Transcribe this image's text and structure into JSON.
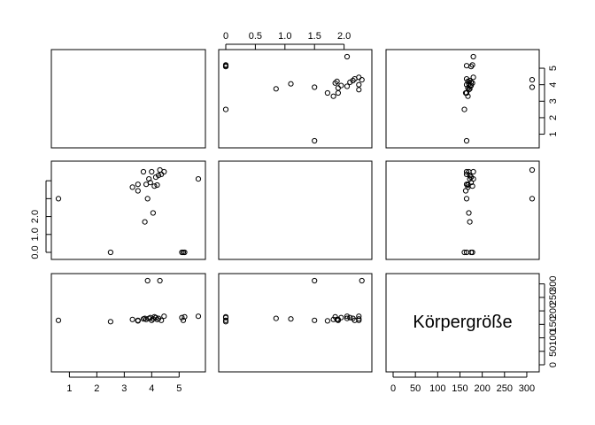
{
  "chart_data": {
    "type": "scatter",
    "variables": [
      {
        "index": 0,
        "name": "",
        "ticks": [
          1,
          2,
          3,
          4,
          5
        ],
        "tick_labels": [
          "1",
          "2",
          "3",
          "4",
          "5"
        ],
        "range": [
          0.6,
          5.7
        ]
      },
      {
        "index": 1,
        "name": "",
        "ticks": [
          0,
          0.5,
          1,
          1.5,
          2
        ],
        "tick_labels": [
          "0.0",
          "0.5",
          "1.0",
          "1.5",
          "2.0"
        ],
        "range": [
          0,
          2.35
        ]
      },
      {
        "index": 2,
        "name": "Körpergröße",
        "ticks": [
          0,
          50,
          100,
          150,
          200,
          250,
          300
        ],
        "tick_labels": [
          "0",
          "50",
          "100",
          "150",
          "200",
          "250",
          "300"
        ],
        "range": [
          0,
          312
        ]
      }
    ],
    "axis_sides": {
      "top": {
        "column": 1,
        "labels": [
          "0",
          "0.5",
          "1.0",
          "1.5",
          "2.0"
        ]
      },
      "bottom_left": {
        "column": 0,
        "labels": [
          "1",
          "2",
          "3",
          "4",
          "5"
        ]
      },
      "bottom_right": {
        "column": 2,
        "labels": [
          "0",
          "50",
          "100",
          "150",
          "200",
          "250",
          "300"
        ]
      },
      "right_top": {
        "row": 0,
        "labels": [
          "1",
          "2",
          "3",
          "4",
          "5"
        ]
      },
      "left_middle": {
        "row": 1,
        "labels": [
          "0.0",
          "1.0",
          "2.0"
        ]
      },
      "right_bottom": {
        "row": 2,
        "labels": [
          "0",
          "50",
          "100",
          "150",
          "200",
          "250",
          "300"
        ]
      }
    },
    "points": [
      [
        0.6,
        1.5,
        165
      ],
      [
        2.5,
        0.0,
        160
      ],
      [
        3.3,
        1.82,
        168
      ],
      [
        3.5,
        1.72,
        163
      ],
      [
        3.5,
        1.9,
        165
      ],
      [
        3.7,
        2.25,
        170
      ],
      [
        3.75,
        0.85,
        172
      ],
      [
        3.8,
        1.9,
        168
      ],
      [
        3.85,
        1.5,
        312
      ],
      [
        3.9,
        2.05,
        172
      ],
      [
        3.95,
        1.95,
        175
      ],
      [
        4.0,
        2.25,
        165
      ],
      [
        4.05,
        1.1,
        170
      ],
      [
        4.1,
        1.85,
        178
      ],
      [
        4.15,
        2.1,
        175
      ],
      [
        4.2,
        1.88,
        168
      ],
      [
        4.25,
        2.15,
        172
      ],
      [
        4.3,
        2.3,
        312
      ],
      [
        4.35,
        2.18,
        165
      ],
      [
        4.45,
        2.25,
        180
      ],
      [
        5.1,
        0.0,
        175
      ],
      [
        5.15,
        0.0,
        165
      ],
      [
        5.2,
        0.0,
        178
      ],
      [
        5.7,
        2.05,
        180
      ]
    ]
  }
}
